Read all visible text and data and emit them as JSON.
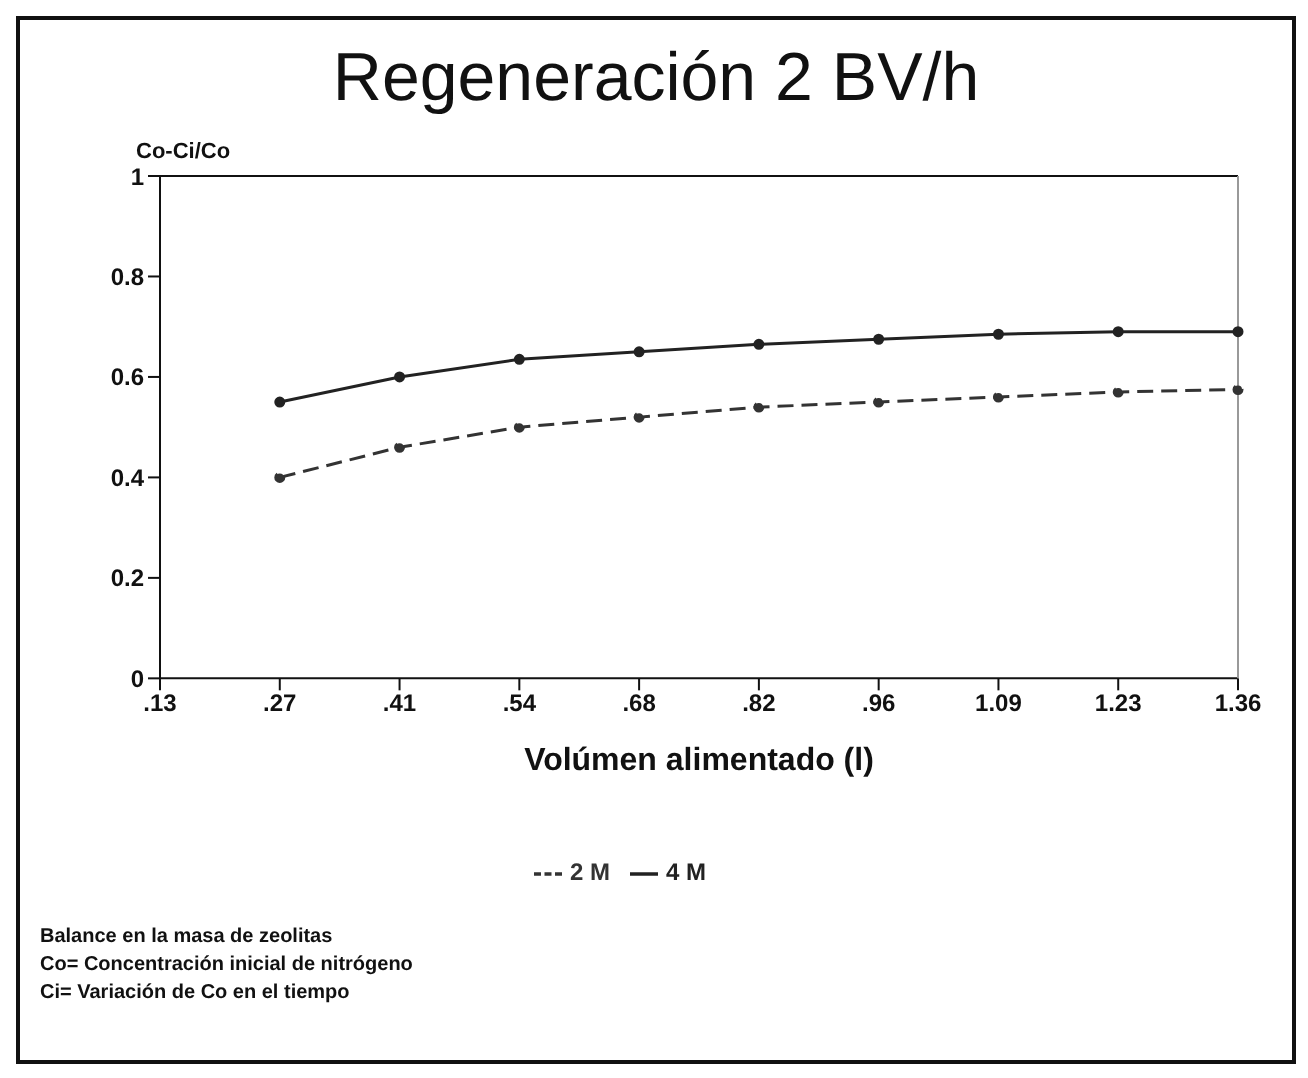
{
  "chart_data": {
    "type": "line",
    "title": "Regeneración 2 BV/h",
    "ylabel": "Co-Ci/Co",
    "xlabel": "Volúmen alimentado (l)",
    "categories": [
      ".13",
      ".27",
      ".41",
      ".54",
      ".68",
      ".82",
      ".96",
      "1.09",
      "1.23",
      "1.36"
    ],
    "series": [
      {
        "name": "2 M",
        "color": "#333333",
        "line_style": "dashed",
        "values": [
          null,
          0.4,
          0.46,
          0.5,
          0.52,
          0.54,
          0.55,
          0.56,
          0.57,
          0.575
        ]
      },
      {
        "name": "4 M",
        "color": "#222222",
        "line_style": "solid",
        "values": [
          null,
          0.55,
          0.6,
          0.635,
          0.65,
          0.665,
          0.675,
          0.685,
          0.69,
          0.69
        ]
      }
    ],
    "ylim": [
      0,
      1
    ],
    "yticks": [
      0,
      0.2,
      0.4,
      0.6,
      0.8,
      1
    ],
    "marker": "circle",
    "legend": "bottom",
    "grid": false,
    "annotations": [
      "Balance en la masa de zeolitas",
      "Co= Concentración inicial de nitrógeno",
      "Ci= Variación de Co en el tiempo"
    ]
  }
}
